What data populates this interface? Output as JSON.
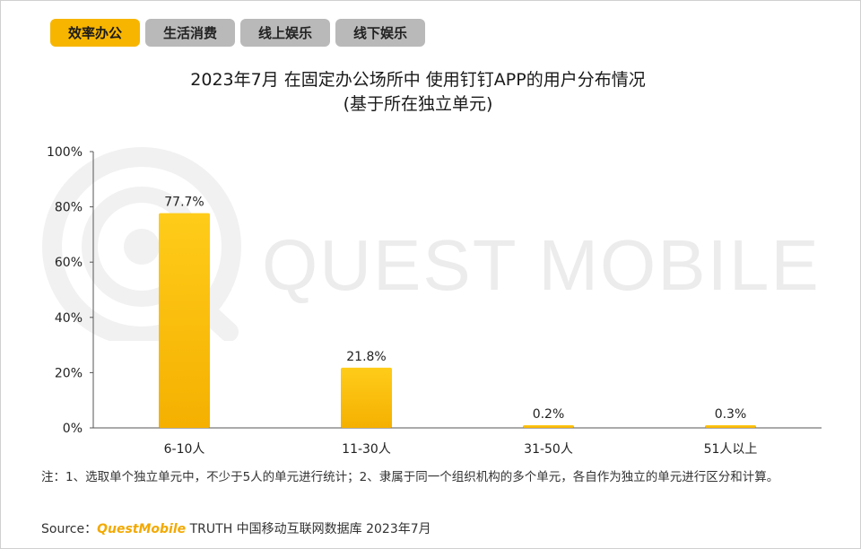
{
  "tabs": [
    {
      "label": "效率办公",
      "active": true
    },
    {
      "label": "生活消费",
      "active": false
    },
    {
      "label": "线上娱乐",
      "active": false
    },
    {
      "label": "线下娱乐",
      "active": false
    }
  ],
  "watermark": "QUEST MOBILE",
  "note": "注：1、选取单个独立单元中，不少于5人的单元进行统计；2、隶属于同一个组织机构的多个单元，各自作为独立的单元进行区分和计算。",
  "source": {
    "prefix": "Source：",
    "brand": "QuestMobile",
    "suffix": "TRUTH 中国移动互联网数据库 2023年7月"
  },
  "colors": {
    "accent": "#f7b500",
    "bar_top": "#ffcc1a",
    "bar_bottom": "#f5b000",
    "inactive_tab": "#b9b9b9"
  },
  "chart_data": {
    "type": "bar",
    "title": "2023年7月 在固定办公场所中 使用钉钉APP的用户分布情况",
    "subtitle": "(基于所在独立单元)",
    "categories": [
      "6-10人",
      "11-30人",
      "31-50人",
      "51人以上"
    ],
    "values": [
      77.7,
      21.8,
      0.2,
      0.3
    ],
    "data_labels": [
      "77.7%",
      "21.8%",
      "0.2%",
      "0.3%"
    ],
    "yticks": [
      "0%",
      "20%",
      "40%",
      "60%",
      "80%",
      "100%"
    ],
    "ylim": [
      0,
      100
    ],
    "xlabel": "",
    "ylabel": "",
    "grid": false,
    "legend": "none"
  }
}
